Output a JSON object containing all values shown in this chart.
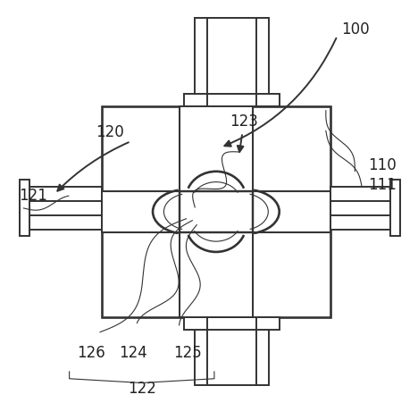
{
  "bg_color": "#ffffff",
  "line_color": "#333333",
  "line_width": 1.4,
  "thin_line": 0.8,
  "label_fs": 12,
  "figsize": [
    4.68,
    4.51
  ],
  "dpi": 100
}
